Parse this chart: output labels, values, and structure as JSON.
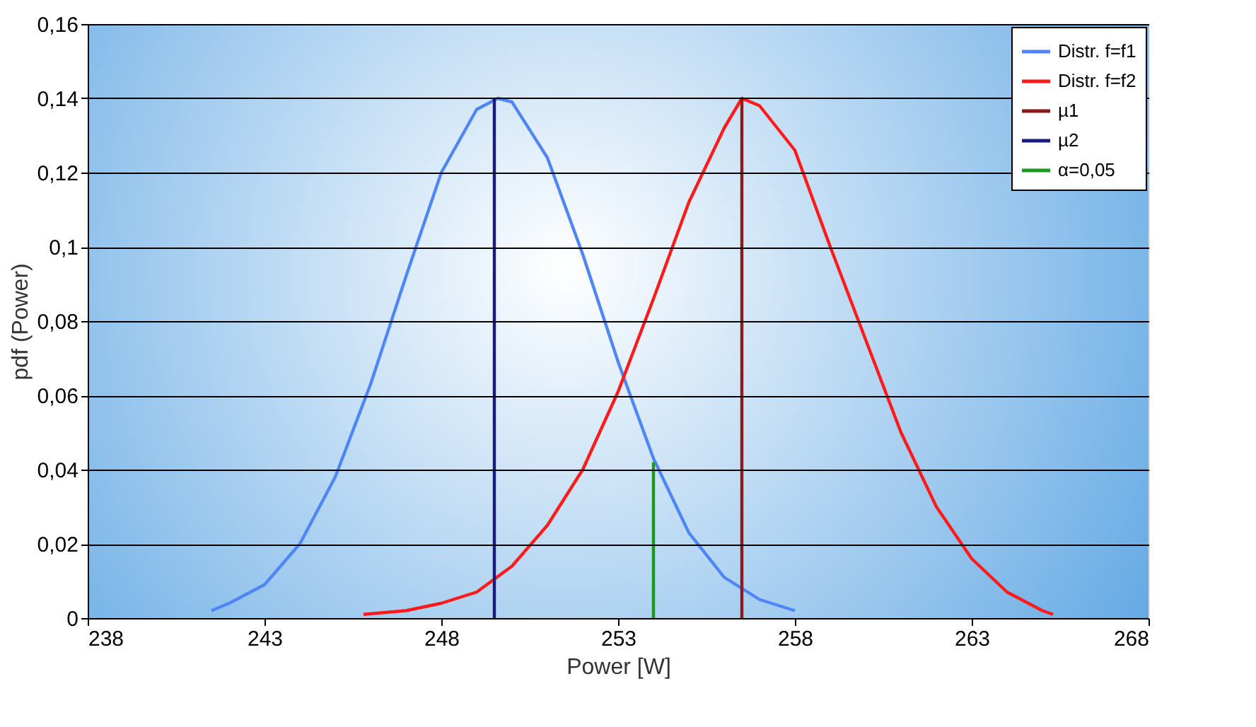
{
  "chart_data": {
    "type": "line",
    "xlabel": "Power [W]",
    "ylabel": "pdf (Power)",
    "xlim": [
      238,
      268
    ],
    "xticks": [
      238,
      243,
      248,
      253,
      258,
      263,
      268
    ],
    "ylim": [
      0,
      0.16
    ],
    "yticks": [
      {
        "value": 0,
        "label": "0"
      },
      {
        "value": 0.02,
        "label": "0,02"
      },
      {
        "value": 0.04,
        "label": "0,04"
      },
      {
        "value": 0.06,
        "label": "0,06"
      },
      {
        "value": 0.08,
        "label": "0,08"
      },
      {
        "value": 0.1,
        "label": "0,1"
      },
      {
        "value": 0.12,
        "label": "0,12"
      },
      {
        "value": 0.14,
        "label": "0,14"
      },
      {
        "value": 0.16,
        "label": "0,16"
      }
    ],
    "grid": "y",
    "legend": "top right",
    "marker": "none",
    "line_style": "solid",
    "series": [
      {
        "name": "Distr. f=f1",
        "color": "#4f86f7",
        "x": [
          241.5,
          242,
          243,
          244,
          245,
          246,
          247,
          248,
          249,
          249.6,
          250,
          251,
          252,
          253,
          254,
          255,
          256,
          257,
          258
        ],
        "values": [
          0.002,
          0.004,
          0.009,
          0.02,
          0.038,
          0.063,
          0.092,
          0.12,
          0.137,
          0.14,
          0.139,
          0.124,
          0.098,
          0.069,
          0.043,
          0.023,
          0.011,
          0.005,
          0.002
        ]
      },
      {
        "name": "Distr. f=f2",
        "color": "#ff1a1a",
        "x": [
          245.8,
          247,
          248,
          249,
          250,
          251,
          252,
          253,
          254,
          255,
          256,
          256.5,
          257,
          258,
          259,
          260,
          261,
          262,
          263,
          264,
          265,
          265.3
        ],
        "values": [
          0.001,
          0.002,
          0.004,
          0.007,
          0.014,
          0.025,
          0.04,
          0.061,
          0.086,
          0.112,
          0.132,
          0.14,
          0.138,
          0.126,
          0.1,
          0.075,
          0.05,
          0.03,
          0.016,
          0.007,
          0.002,
          0.001
        ]
      },
      {
        "name": "µ1",
        "color": "#8b1a1a",
        "x": [
          256.5,
          256.5
        ],
        "values": [
          0,
          0.14
        ]
      },
      {
        "name": "µ2",
        "color": "#1a1a80",
        "x": [
          249.5,
          249.5
        ],
        "values": [
          0,
          0.14
        ]
      },
      {
        "name": "α=0,05",
        "color": "#1a9a1a",
        "x": [
          254,
          254
        ],
        "values": [
          0,
          0.042
        ]
      }
    ]
  }
}
